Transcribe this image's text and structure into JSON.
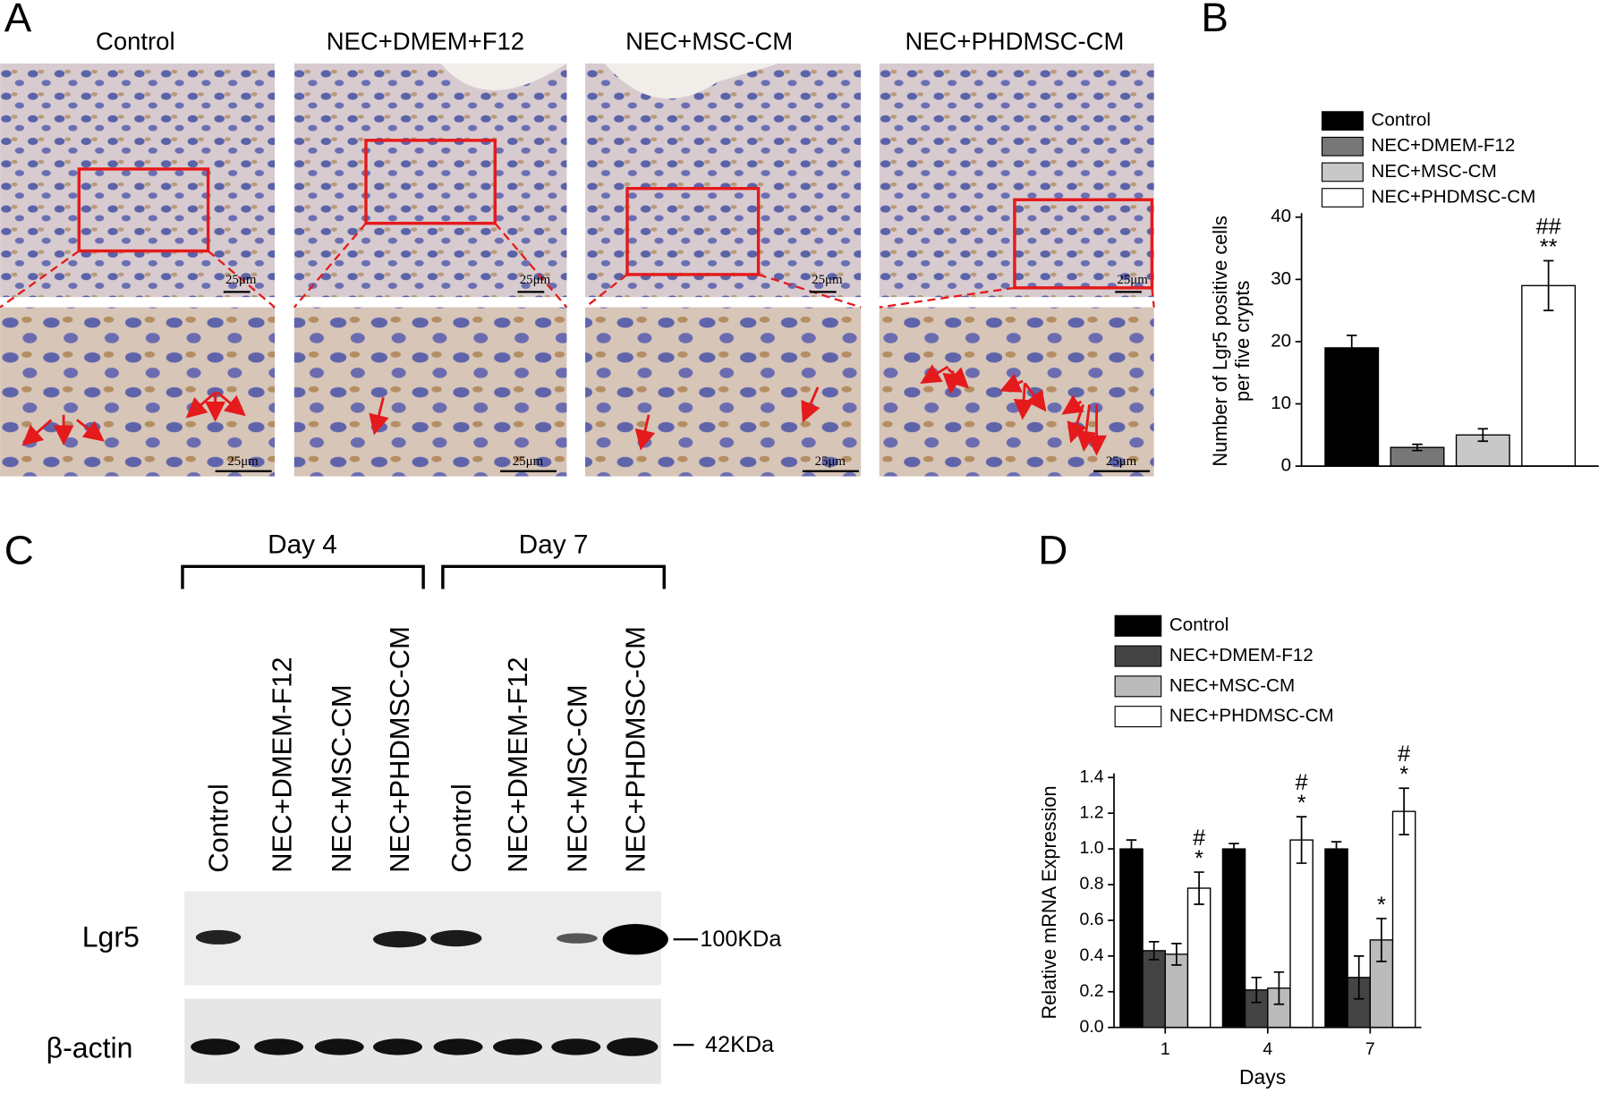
{
  "panel_labels": [
    "A",
    "B",
    "C",
    "D"
  ],
  "micrographs": {
    "titles": [
      "Control",
      "NEC+DMEM+F12",
      "NEC+MSC-CM",
      "NEC+PHDMSC-CM"
    ],
    "scale_bar": "25μm"
  },
  "western_blot": {
    "groups": [
      "Day 4",
      "Day 7"
    ],
    "lanes": [
      "Control",
      "NEC+DMEM-F12",
      "NEC+MSC-CM",
      "NEC+PHDMSC-CM",
      "Control",
      "NEC+DMEM-F12",
      "NEC+MSC-CM",
      "NEC+PHDMSC-CM"
    ],
    "rows": [
      {
        "label": "Lgr5",
        "size": "100KDa"
      },
      {
        "label": "β-actin",
        "size": "42KDa"
      }
    ]
  },
  "chart_data": [
    {
      "type": "bar",
      "ylabel": [
        "Number of Lgr5 positive cells",
        "per five crypts"
      ],
      "categories": [
        null
      ],
      "series": [
        {
          "name": "Control",
          "color": "#000000",
          "values": [
            19
          ],
          "errors": [
            2
          ]
        },
        {
          "name": "NEC+DMEM-F12",
          "color": "#777777",
          "values": [
            3
          ],
          "errors": [
            0.5
          ]
        },
        {
          "name": "NEC+MSC-CM",
          "color": "#c8c8c8",
          "values": [
            5
          ],
          "errors": [
            1
          ]
        },
        {
          "name": "NEC+PHDMSC-CM",
          "color": "#ffffff",
          "values": [
            29
          ],
          "errors": [
            4
          ],
          "annotations": [
            [
              "##",
              "**"
            ]
          ]
        }
      ],
      "ylim": [
        0,
        40
      ],
      "yticks": [
        0,
        10,
        20,
        30,
        40
      ]
    },
    {
      "type": "bar",
      "xlabel": "Days",
      "ylabel": "Relative mRNA Expression",
      "categories": [
        "1",
        "4",
        "7"
      ],
      "series": [
        {
          "name": "Control",
          "color": "#000000",
          "values": [
            1.0,
            1.0,
            1.0
          ],
          "errors": [
            0.05,
            0.03,
            0.04
          ]
        },
        {
          "name": "NEC+DMEM-F12",
          "color": "#444444",
          "values": [
            0.43,
            0.21,
            0.28
          ],
          "errors": [
            0.05,
            0.07,
            0.12
          ]
        },
        {
          "name": "NEC+MSC-CM",
          "color": "#bbbbbb",
          "values": [
            0.41,
            0.22,
            0.49
          ],
          "errors": [
            0.06,
            0.09,
            0.12
          ],
          "annotations": [
            null,
            null,
            [
              "*"
            ]
          ]
        },
        {
          "name": "NEC+PHDMSC-CM",
          "color": "#ffffff",
          "values": [
            0.78,
            1.05,
            1.21
          ],
          "errors": [
            0.09,
            0.13,
            0.13
          ],
          "annotations": [
            [
              "#",
              "*"
            ],
            [
              "#",
              "*"
            ],
            [
              "#",
              "*"
            ]
          ]
        }
      ],
      "ylim": [
        0,
        1.4
      ],
      "yticks": [
        {
          "value": 0,
          "label": "0.0"
        },
        0.2,
        0.4,
        0.6,
        0.8,
        {
          "value": 1,
          "label": "1.0"
        },
        1.2,
        1.4
      ]
    }
  ]
}
